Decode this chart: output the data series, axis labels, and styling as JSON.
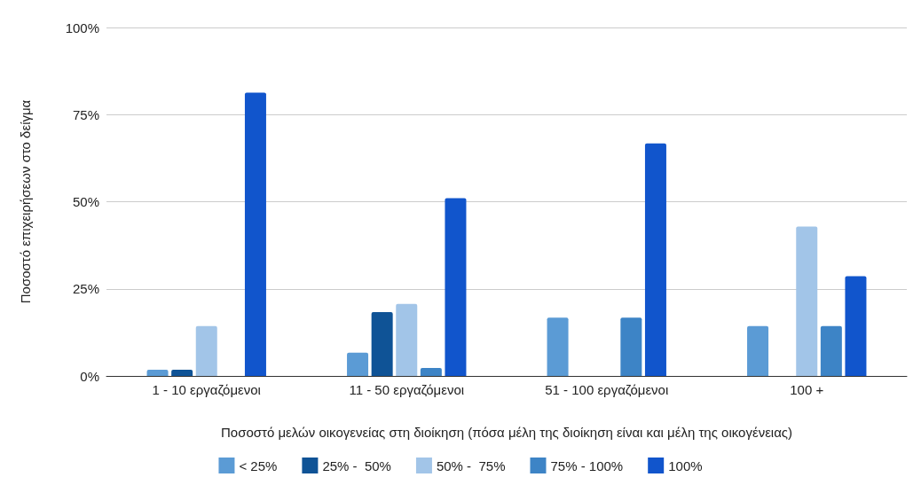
{
  "chart_data": {
    "type": "bar",
    "xlabel": "Ποσοστό μελών οικογενείας στη διοίκηση (πόσα μέλη της διοίκηση είναι και μέλη της οικογένειας)",
    "ylabel": "Ποσοστό επιχειρήσεων στο δείγμα",
    "categories": [
      "1 - 10 εργαζόμενοι",
      "11 - 50 εργαζόμενοι",
      "51 - 100 εργαζόμενοι",
      "100 +"
    ],
    "series": [
      {
        "name": "< 25%",
        "color": "#5b9bd5",
        "values": [
          1.8,
          6.7,
          16.7,
          14.3
        ]
      },
      {
        "name": "25% -  50%",
        "color": "#0f5396",
        "values": [
          1.8,
          18.3,
          0,
          0
        ]
      },
      {
        "name": "50% -  75%",
        "color": "#a2c5e8",
        "values": [
          14.3,
          20.7,
          0,
          42.9
        ]
      },
      {
        "name": "75% - 100%",
        "color": "#3d84c6",
        "values": [
          0,
          2.3,
          16.7,
          14.3
        ]
      },
      {
        "name": "100%",
        "color": "#1155cc",
        "values": [
          81.3,
          51,
          66.7,
          28.6
        ]
      }
    ],
    "ylim": [
      0,
      100
    ],
    "yticks": [
      {
        "value": 0,
        "label": "0%"
      },
      {
        "value": 25,
        "label": "25%"
      },
      {
        "value": 50,
        "label": "50%"
      },
      {
        "value": 75,
        "label": "75%"
      },
      {
        "value": 100,
        "label": "100%"
      }
    ],
    "grid": "y",
    "legend": "bottom"
  }
}
